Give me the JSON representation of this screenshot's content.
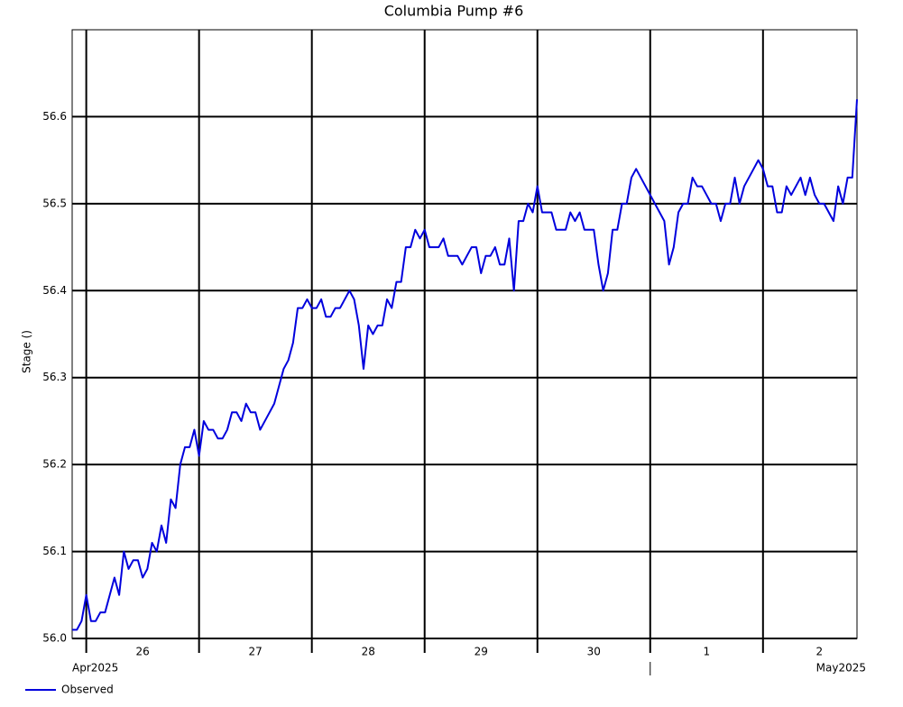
{
  "chart_data": {
    "type": "line",
    "title": "Columbia Pump #6",
    "y_label": "Stage ()",
    "x": [
      "2025-04-25T21:00",
      "2025-04-25T22:00",
      "2025-04-25T23:00",
      "2025-04-26T00:00",
      "2025-04-26T01:00",
      "2025-04-26T02:00",
      "2025-04-26T03:00",
      "2025-04-26T04:00",
      "2025-04-26T05:00",
      "2025-04-26T06:00",
      "2025-04-26T07:00",
      "2025-04-26T08:00",
      "2025-04-26T09:00",
      "2025-04-26T10:00",
      "2025-04-26T11:00",
      "2025-04-26T12:00",
      "2025-04-26T13:00",
      "2025-04-26T14:00",
      "2025-04-26T15:00",
      "2025-04-26T16:00",
      "2025-04-26T17:00",
      "2025-04-26T18:00",
      "2025-04-26T19:00",
      "2025-04-26T20:00",
      "2025-04-26T21:00",
      "2025-04-26T22:00",
      "2025-04-26T23:00",
      "2025-04-27T00:00",
      "2025-04-27T01:00",
      "2025-04-27T02:00",
      "2025-04-27T03:00",
      "2025-04-27T04:00",
      "2025-04-27T05:00",
      "2025-04-27T06:00",
      "2025-04-27T07:00",
      "2025-04-27T08:00",
      "2025-04-27T09:00",
      "2025-04-27T10:00",
      "2025-04-27T11:00",
      "2025-04-27T12:00",
      "2025-04-27T13:00",
      "2025-04-27T14:00",
      "2025-04-27T15:00",
      "2025-04-27T16:00",
      "2025-04-27T17:00",
      "2025-04-27T18:00",
      "2025-04-27T19:00",
      "2025-04-27T20:00",
      "2025-04-27T21:00",
      "2025-04-27T22:00",
      "2025-04-27T23:00",
      "2025-04-28T00:00",
      "2025-04-28T01:00",
      "2025-04-28T02:00",
      "2025-04-28T03:00",
      "2025-04-28T04:00",
      "2025-04-28T05:00",
      "2025-04-28T06:00",
      "2025-04-28T07:00",
      "2025-04-28T08:00",
      "2025-04-28T09:00",
      "2025-04-28T10:00",
      "2025-04-28T11:00",
      "2025-04-28T12:00",
      "2025-04-28T13:00",
      "2025-04-28T14:00",
      "2025-04-28T15:00",
      "2025-04-28T16:00",
      "2025-04-28T17:00",
      "2025-04-28T18:00",
      "2025-04-28T19:00",
      "2025-04-28T20:00",
      "2025-04-28T21:00",
      "2025-04-28T22:00",
      "2025-04-28T23:00",
      "2025-04-29T00:00",
      "2025-04-29T01:00",
      "2025-04-29T02:00",
      "2025-04-29T03:00",
      "2025-04-29T04:00",
      "2025-04-29T05:00",
      "2025-04-29T06:00",
      "2025-04-29T07:00",
      "2025-04-29T08:00",
      "2025-04-29T09:00",
      "2025-04-29T10:00",
      "2025-04-29T11:00",
      "2025-04-29T12:00",
      "2025-04-29T13:00",
      "2025-04-29T14:00",
      "2025-04-29T15:00",
      "2025-04-29T16:00",
      "2025-04-29T17:00",
      "2025-04-29T18:00",
      "2025-04-29T19:00",
      "2025-04-29T20:00",
      "2025-04-29T21:00",
      "2025-04-29T22:00",
      "2025-04-29T23:00",
      "2025-04-30T00:00",
      "2025-04-30T01:00",
      "2025-04-30T02:00",
      "2025-04-30T03:00",
      "2025-04-30T04:00",
      "2025-04-30T05:00",
      "2025-04-30T06:00",
      "2025-04-30T07:00",
      "2025-04-30T08:00",
      "2025-04-30T09:00",
      "2025-04-30T10:00",
      "2025-04-30T11:00",
      "2025-04-30T12:00",
      "2025-04-30T13:00",
      "2025-04-30T14:00",
      "2025-04-30T15:00",
      "2025-04-30T16:00",
      "2025-04-30T17:00",
      "2025-04-30T18:00",
      "2025-04-30T19:00",
      "2025-04-30T20:00",
      "2025-04-30T21:00",
      "2025-04-30T22:00",
      "2025-04-30T23:00",
      "2025-05-01T00:00",
      "2025-05-01T01:00",
      "2025-05-01T02:00",
      "2025-05-01T03:00",
      "2025-05-01T04:00",
      "2025-05-01T05:00",
      "2025-05-01T06:00",
      "2025-05-01T07:00",
      "2025-05-01T08:00",
      "2025-05-01T09:00",
      "2025-05-01T10:00",
      "2025-05-01T11:00",
      "2025-05-01T12:00",
      "2025-05-01T13:00",
      "2025-05-01T14:00",
      "2025-05-01T15:00",
      "2025-05-01T16:00",
      "2025-05-01T17:00",
      "2025-05-01T18:00",
      "2025-05-01T19:00",
      "2025-05-01T20:00",
      "2025-05-01T21:00",
      "2025-05-01T22:00",
      "2025-05-01T23:00",
      "2025-05-02T00:00",
      "2025-05-02T01:00",
      "2025-05-02T02:00",
      "2025-05-02T03:00",
      "2025-05-02T04:00",
      "2025-05-02T05:00",
      "2025-05-02T06:00",
      "2025-05-02T07:00",
      "2025-05-02T08:00",
      "2025-05-02T09:00",
      "2025-05-02T10:00",
      "2025-05-02T11:00",
      "2025-05-02T12:00",
      "2025-05-02T13:00",
      "2025-05-02T14:00",
      "2025-05-02T15:00",
      "2025-05-02T16:00",
      "2025-05-02T17:00",
      "2025-05-02T18:00",
      "2025-05-02T19:00",
      "2025-05-02T20:00"
    ],
    "series": [
      {
        "name": "Observed",
        "color": "#0000dd",
        "values": [
          56.01,
          56.01,
          56.02,
          56.05,
          56.02,
          56.02,
          56.03,
          56.03,
          56.05,
          56.07,
          56.05,
          56.1,
          56.08,
          56.09,
          56.09,
          56.07,
          56.08,
          56.11,
          56.1,
          56.13,
          56.11,
          56.16,
          56.15,
          56.2,
          56.22,
          56.22,
          56.24,
          56.21,
          56.25,
          56.24,
          56.24,
          56.23,
          56.23,
          56.24,
          56.26,
          56.26,
          56.25,
          56.27,
          56.26,
          56.26,
          56.24,
          56.25,
          56.26,
          56.27,
          56.29,
          56.31,
          56.32,
          56.34,
          56.38,
          56.38,
          56.39,
          56.38,
          56.38,
          56.39,
          56.37,
          56.37,
          56.38,
          56.38,
          56.39,
          56.4,
          56.39,
          56.36,
          56.31,
          56.36,
          56.35,
          56.36,
          56.36,
          56.39,
          56.38,
          56.41,
          56.41,
          56.45,
          56.45,
          56.47,
          56.46,
          56.47,
          56.45,
          56.45,
          56.45,
          56.46,
          56.44,
          56.44,
          56.44,
          56.43,
          56.44,
          56.45,
          56.45,
          56.42,
          56.44,
          56.44,
          56.45,
          56.43,
          56.43,
          56.46,
          56.4,
          56.48,
          56.48,
          56.5,
          56.49,
          56.52,
          56.49,
          56.49,
          56.49,
          56.47,
          56.47,
          56.47,
          56.49,
          56.48,
          56.49,
          56.47,
          56.47,
          56.47,
          56.43,
          56.4,
          56.42,
          56.47,
          56.47,
          56.5,
          56.5,
          56.53,
          56.54,
          56.53,
          56.52,
          56.51,
          56.5,
          56.49,
          56.48,
          56.43,
          56.45,
          56.49,
          56.5,
          56.5,
          56.53,
          56.52,
          56.52,
          56.51,
          56.5,
          56.5,
          56.48,
          56.5,
          56.5,
          56.53,
          56.5,
          56.52,
          56.53,
          56.54,
          56.55,
          56.54,
          56.52,
          56.52,
          56.49,
          56.49,
          56.52,
          56.51,
          56.52,
          56.53,
          56.51,
          56.53,
          56.51,
          56.5,
          56.5,
          56.49,
          56.48,
          56.52,
          56.5,
          56.53,
          56.53,
          56.62
        ]
      }
    ],
    "xlim": [
      "2025-04-25T21:00",
      "2025-05-02T20:00"
    ],
    "xticks": [
      {
        "value": "2025-04-26T00:00",
        "label": "26"
      },
      {
        "value": "2025-04-27T00:00",
        "label": "27"
      },
      {
        "value": "2025-04-28T00:00",
        "label": "28"
      },
      {
        "value": "2025-04-29T00:00",
        "label": "29"
      },
      {
        "value": "2025-04-30T00:00",
        "label": "30"
      },
      {
        "value": "2025-05-01T00:00",
        "label": "1"
      },
      {
        "value": "2025-05-02T00:00",
        "label": "2"
      }
    ],
    "month_ticks": [
      {
        "value": "2025-04-01T00:00",
        "label": "Apr2025"
      },
      {
        "value": "2025-05-01T00:00",
        "label": "May2025"
      }
    ],
    "ylim": [
      56.0,
      56.7
    ],
    "yticks": [
      {
        "value": 56.0,
        "label": "56.0"
      },
      56.1,
      56.2,
      56.3,
      56.4,
      56.5,
      56.6
    ],
    "grid": true,
    "legend": "bottom-left"
  }
}
